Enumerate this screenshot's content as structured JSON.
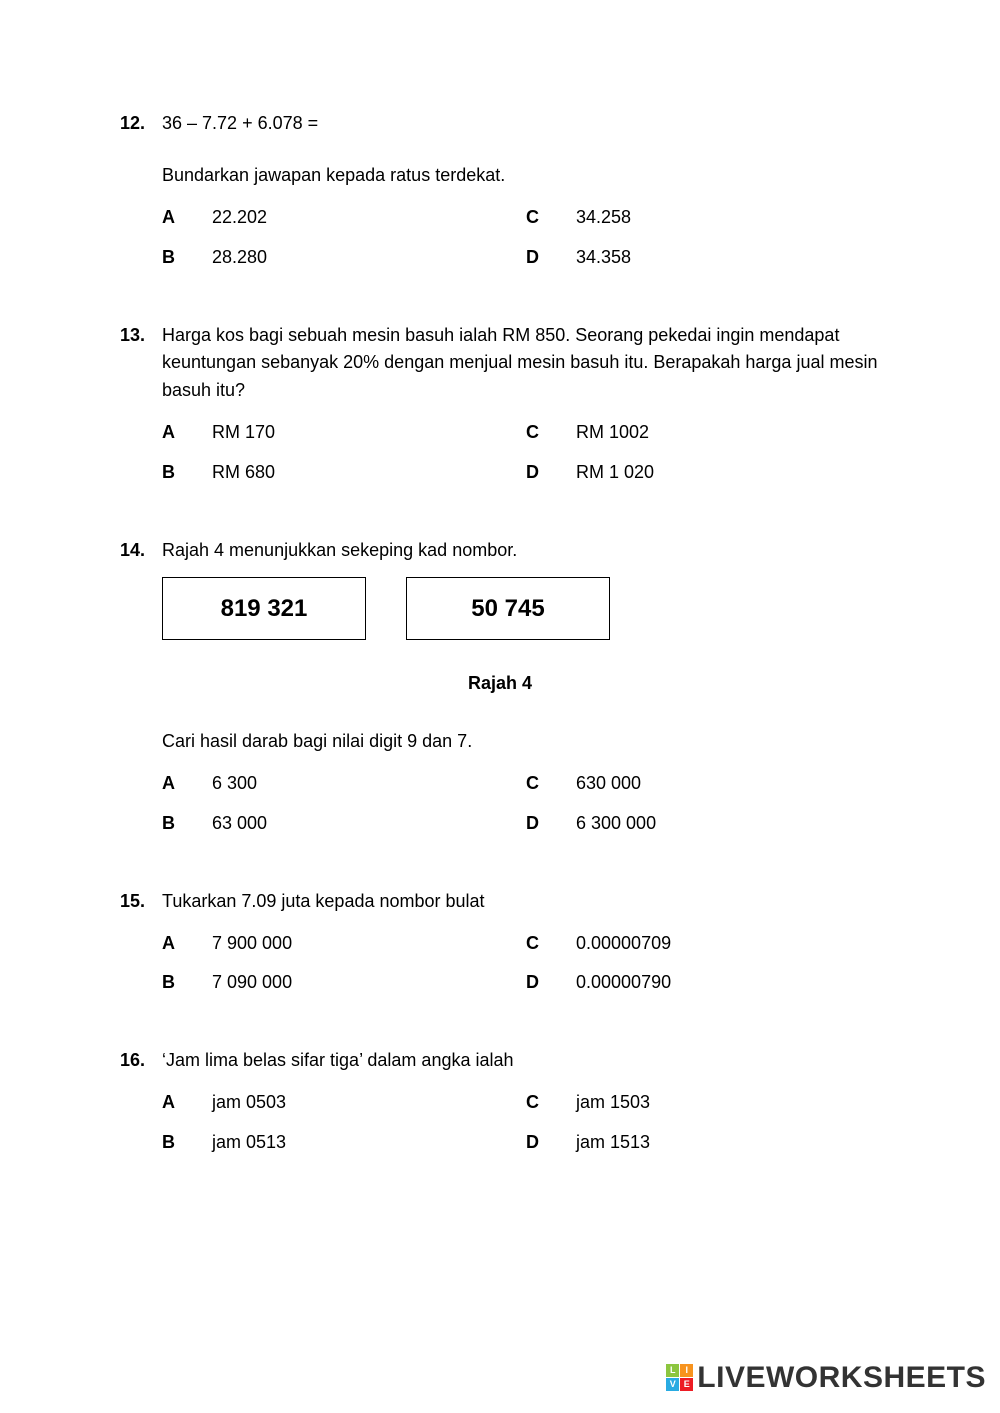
{
  "questions": [
    {
      "number": "12.",
      "text": "36 – 7.72  + 6.078 =",
      "sub": "Bundarkan jawapan kepada ratus terdekat.",
      "options": {
        "A": "22.202",
        "B": "28.280",
        "C": "34.258",
        "D": "34.358"
      }
    },
    {
      "number": "13.",
      "text": "Harga kos bagi sebuah mesin basuh ialah RM 850. Seorang pekedai ingin mendapat keuntungan sebanyak 20% dengan menjual mesin basuh itu. Berapakah harga jual mesin basuh itu?",
      "options": {
        "A": "RM 170",
        "B": "RM 680",
        "C": "RM 1002",
        "D": "RM 1 020"
      }
    },
    {
      "number": "14.",
      "text": "Rajah 4 menunjukkan sekeping kad nombor.",
      "cards": [
        "819 321",
        "50 745"
      ],
      "figure_caption": "Rajah 4",
      "sub2": "Cari hasil darab bagi nilai digit 9 dan 7.",
      "options": {
        "A": "6 300",
        "B": "63 000",
        "C": "630 000",
        "D": "6 300 000"
      }
    },
    {
      "number": "15.",
      "text": "Tukarkan 7.09 juta kepada nombor bulat",
      "options": {
        "A": "7 900 000",
        "B": "7 090 000",
        "C": "0.00000709",
        "D": "0.00000790"
      }
    },
    {
      "number": "16.",
      "text": "‘Jam lima belas sifar tiga’ dalam angka ialah",
      "options": {
        "A": "jam 0503",
        "B": "jam 0513",
        "C": "jam 1503",
        "D": "jam 1513"
      }
    }
  ],
  "watermark": {
    "icon_cells": [
      "L",
      "I",
      "V",
      "E"
    ],
    "icon_colors": [
      "#8cc63f",
      "#f7931e",
      "#29abe2",
      "#ed1c24"
    ],
    "text": "LIVEWORKSHEETS"
  }
}
